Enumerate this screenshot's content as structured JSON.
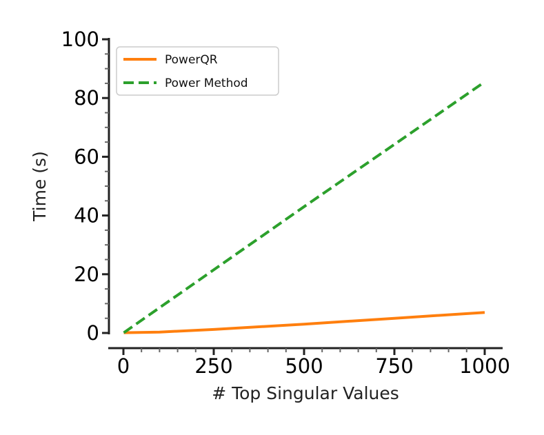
{
  "chart_data": {
    "type": "line",
    "title": "",
    "xlabel": "# Top Singular Values",
    "ylabel": "Time (s)",
    "xlim": [
      0,
      1000
    ],
    "ylim": [
      0,
      100
    ],
    "xticks": [
      0,
      250,
      500,
      750,
      1000
    ],
    "yticks": [
      0,
      20,
      40,
      60,
      80,
      100
    ],
    "grid": false,
    "legend_position": "top-left",
    "series": [
      {
        "name": "PowerQR",
        "color": "#ff7f0e",
        "style": "solid",
        "x": [
          1,
          100,
          250,
          500,
          750,
          1000
        ],
        "y": [
          0.1,
          0.3,
          1.2,
          3.0,
          5.0,
          7.0
        ]
      },
      {
        "name": "Power Method",
        "color": "#2ca02c",
        "style": "dashed",
        "x": [
          1,
          250,
          500,
          750,
          1000
        ],
        "y": [
          0.1,
          21.5,
          43.0,
          64.2,
          85.5
        ]
      }
    ]
  }
}
